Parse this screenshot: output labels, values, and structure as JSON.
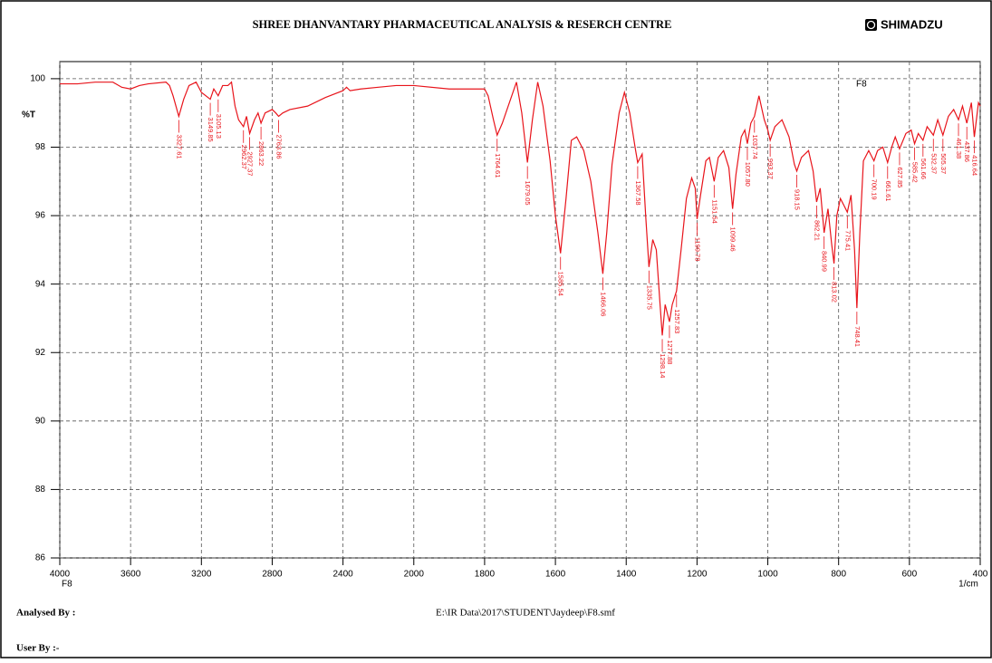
{
  "chart_data": {
    "type": "line",
    "title": "SHREE  DHANVANTARY PHARMACEUTICAL ANALYSIS & RESERCH CENTRE",
    "brand": "SHIMADZU",
    "y_label": "%T",
    "x_label": "1/cm",
    "x_sample_label": "F8",
    "analysed_by": "Analysed By :",
    "file_path": "E:\\IR Data\\2017\\STUDENT\\Jaydeep\\F8.smf",
    "user_by": "User By :-",
    "xlim": [
      4000,
      400
    ],
    "ylim": [
      86,
      100.5
    ],
    "xticks": [
      4000,
      3600,
      3200,
      2800,
      2400,
      2000,
      1800,
      1600,
      1400,
      1200,
      1000,
      800,
      600,
      400
    ],
    "yticks": [
      86,
      88,
      90,
      92,
      94,
      96,
      98,
      100
    ],
    "grid": true,
    "legend": "top-right",
    "series": [
      {
        "name": "F8",
        "color": "#e8141b",
        "x": [
          4000,
          3900,
          3800,
          3700,
          3650,
          3600,
          3550,
          3500,
          3400,
          3380,
          3360,
          3327.61,
          3300,
          3270,
          3230,
          3200,
          3149.85,
          3130,
          3105.13,
          3080,
          3050,
          3030,
          3010,
          2990,
          2962.37,
          2945,
          2927.37,
          2900,
          2880,
          2863.22,
          2840,
          2800,
          2780,
          2763.86,
          2740,
          2700,
          2600,
          2500,
          2400,
          2380,
          2360,
          2300,
          2200,
          2100,
          2000,
          1900,
          1800,
          1790,
          1775,
          1764.61,
          1750,
          1730,
          1710,
          1695,
          1679.05,
          1665,
          1650,
          1635,
          1615,
          1600,
          1585.54,
          1570,
          1555,
          1540,
          1520,
          1500,
          1480,
          1466.06,
          1455,
          1440,
          1420,
          1405,
          1390,
          1375,
          1367.58,
          1355,
          1345,
          1335.75,
          1325,
          1315,
          1305,
          1298.14,
          1290,
          1277.88,
          1270,
          1257.83,
          1245,
          1230,
          1215,
          1205,
          1199.78,
          1190,
          1175,
          1165,
          1151.54,
          1140,
          1125,
          1110,
          1099.46,
          1090,
          1075,
          1065,
          1057.8,
          1048,
          1037.74,
          1025,
          1010,
          1000,
          993.37,
          980,
          960,
          940,
          925,
          918.15,
          905,
          885,
          872,
          862.21,
          852,
          840.99,
          830,
          820,
          813.02,
          805,
          795,
          785,
          775.41,
          765,
          755,
          748.41,
          740,
          730,
          715,
          700.19,
          690,
          675,
          661.61,
          650,
          640,
          627.85,
          610,
          595,
          585.42,
          575,
          561.66,
          550,
          532.37,
          520,
          505.37,
          490,
          475,
          461.38,
          450,
          437.86,
          425,
          416.64,
          405,
          400
        ],
        "values": [
          99.85,
          99.85,
          99.9,
          99.9,
          99.75,
          99.7,
          99.8,
          99.85,
          99.9,
          99.8,
          99.5,
          98.9,
          99.4,
          99.8,
          99.9,
          99.6,
          99.4,
          99.7,
          99.5,
          99.8,
          99.8,
          99.9,
          99.2,
          98.8,
          98.6,
          98.9,
          98.4,
          98.8,
          99.0,
          98.7,
          99.0,
          99.1,
          99.0,
          98.9,
          99.0,
          99.1,
          99.2,
          99.45,
          99.65,
          99.75,
          99.65,
          99.7,
          99.75,
          99.8,
          99.8,
          99.7,
          99.7,
          99.5,
          98.8,
          98.35,
          98.7,
          99.3,
          99.9,
          99.0,
          97.55,
          98.8,
          99.9,
          99.2,
          97.6,
          96.0,
          94.9,
          96.5,
          98.2,
          98.3,
          97.9,
          97.0,
          95.5,
          94.3,
          95.5,
          97.5,
          99.0,
          99.6,
          99.0,
          98.0,
          97.55,
          97.8,
          96.0,
          94.5,
          95.3,
          95.0,
          93.5,
          92.5,
          93.4,
          92.9,
          93.4,
          93.8,
          95.0,
          96.5,
          97.1,
          96.8,
          95.9,
          96.6,
          97.6,
          97.7,
          97.0,
          97.7,
          97.9,
          97.4,
          96.2,
          97.2,
          98.3,
          98.5,
          98.1,
          98.7,
          98.9,
          99.5,
          98.8,
          98.5,
          98.2,
          98.6,
          98.8,
          98.3,
          97.5,
          97.3,
          97.7,
          97.9,
          97.3,
          96.4,
          96.8,
          95.5,
          96.2,
          95.2,
          94.6,
          96.0,
          96.5,
          96.3,
          96.1,
          96.6,
          95.0,
          93.3,
          95.5,
          97.6,
          97.9,
          97.6,
          97.9,
          98.0,
          97.55,
          98.0,
          98.3,
          97.95,
          98.4,
          98.5,
          98.1,
          98.4,
          98.2,
          98.6,
          98.35,
          98.8,
          98.35,
          98.9,
          99.1,
          98.8,
          99.2,
          98.7,
          99.3,
          98.3,
          99.3,
          99.2
        ]
      }
    ],
    "peaks": {
      "x": [
        3327.61,
        3149.85,
        3105.13,
        2962.37,
        2927.37,
        2863.22,
        2763.86,
        1764.61,
        1679.05,
        1585.54,
        1466.06,
        1367.58,
        1335.75,
        1298.14,
        1277.88,
        1257.83,
        1199.78,
        1151.54,
        1099.46,
        1057.8,
        1037.74,
        993.37,
        918.15,
        862.21,
        840.99,
        813.02,
        775.41,
        748.41,
        700.19,
        661.61,
        627.85,
        585.42,
        561.66,
        532.37,
        505.37,
        461.38,
        437.86,
        416.64
      ],
      "x_labels": [
        "3327.61",
        "3149.85",
        "3105.13",
        "2962.37",
        "2927.37",
        "2863.22",
        "2763.86",
        "1764.61",
        "1679.05",
        "1585.54",
        "1466.06",
        "1367.58",
        "1335.75",
        "1298.14",
        "1277.88",
        "1257.83",
        "1199.78",
        "1151.54",
        "1099.46",
        "1057.80",
        "1037.74",
        "993.37",
        "918.15",
        "862.21",
        "840.99",
        "813.02",
        "775.41",
        "748.41",
        "700.19",
        "661.61",
        "627.85",
        "585.42",
        "561.66",
        "532.37",
        "505.37",
        "461.38",
        "437.86",
        "416.64"
      ],
      "y": [
        98.9,
        99.4,
        99.5,
        98.6,
        98.4,
        98.7,
        98.9,
        98.35,
        97.55,
        94.9,
        94.3,
        97.55,
        94.5,
        92.5,
        92.9,
        93.8,
        95.9,
        97.0,
        96.2,
        98.1,
        98.9,
        98.2,
        97.3,
        96.4,
        95.5,
        94.6,
        96.1,
        93.3,
        97.6,
        97.55,
        97.95,
        98.1,
        98.2,
        98.35,
        98.35,
        98.8,
        98.7,
        98.3
      ]
    }
  }
}
